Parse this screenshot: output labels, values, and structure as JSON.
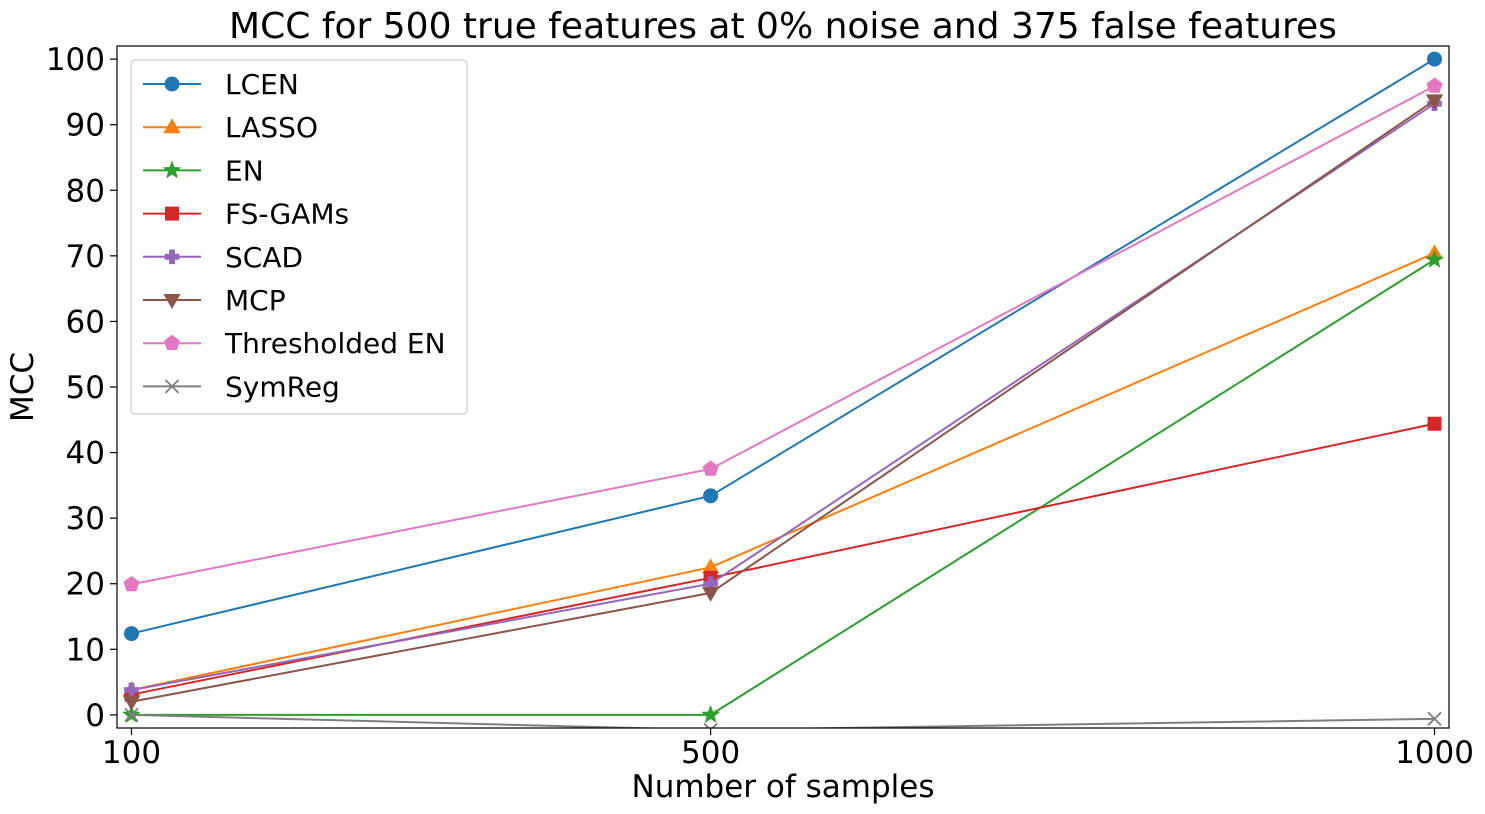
{
  "chart_data": {
    "type": "line",
    "title": "MCC for 500 true features at 0% noise and 375 false features",
    "xlabel": "Number of samples",
    "ylabel": "MCC",
    "x": [
      100,
      500,
      1000
    ],
    "xticks": [
      "100",
      "500",
      "1000"
    ],
    "yticks": [
      "0",
      "10",
      "20",
      "30",
      "40",
      "50",
      "60",
      "70",
      "80",
      "90",
      "100"
    ],
    "xlim": [
      90,
      1010
    ],
    "ylim": [
      -2,
      102
    ],
    "grid": false,
    "legend_position": "upper-left",
    "series": [
      {
        "name": "LCEN",
        "values": [
          12.4,
          33.4,
          100
        ],
        "color": "#1f77b4",
        "marker": "circle"
      },
      {
        "name": "LASSO",
        "values": [
          3.8,
          22.5,
          70.4
        ],
        "color": "#ff7f0e",
        "marker": "triangle-up"
      },
      {
        "name": "EN",
        "values": [
          0.0,
          0.0,
          69.4
        ],
        "color": "#2ca02c",
        "marker": "star"
      },
      {
        "name": "FS-GAMs",
        "values": [
          3.1,
          20.9,
          44.4
        ],
        "color": "#d62728",
        "marker": "square"
      },
      {
        "name": "SCAD",
        "values": [
          3.8,
          20.0,
          93.2
        ],
        "color": "#9467bd",
        "marker": "plus"
      },
      {
        "name": "MCP",
        "values": [
          2.0,
          18.6,
          93.7
        ],
        "color": "#8c564b",
        "marker": "triangle-down"
      },
      {
        "name": "Thresholded EN",
        "values": [
          19.9,
          37.5,
          95.9
        ],
        "color": "#e377c2",
        "marker": "pentagon"
      },
      {
        "name": "SymReg",
        "values": [
          0.0,
          -2.3,
          -0.6
        ],
        "color": "#7f7f7f",
        "marker": "x"
      }
    ]
  }
}
